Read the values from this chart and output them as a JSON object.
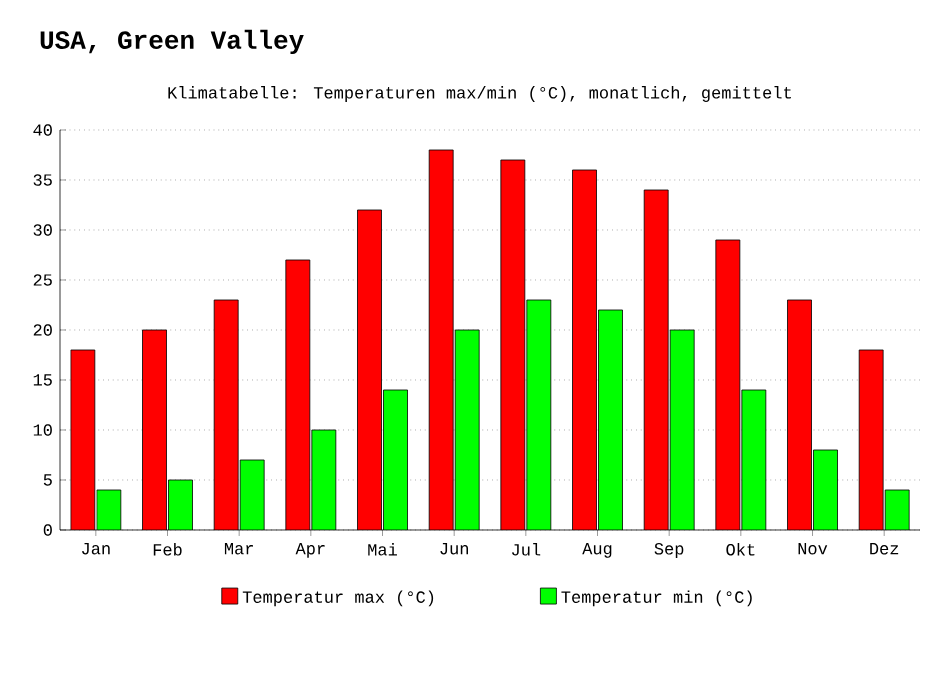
{
  "chart_data": {
    "type": "bar",
    "title": "USA, Green Valley",
    "subtitle": "Klimatabelle: Temperaturen max/min (°C), monatlich, gemittelt",
    "categories": [
      "Jan",
      "Feb",
      "Mar",
      "Apr",
      "Mai",
      "Jun",
      "Jul",
      "Aug",
      "Sep",
      "Okt",
      "Nov",
      "Dez"
    ],
    "series": [
      {
        "name": "Temperatur max (°C)",
        "color": "#ff0000",
        "values": [
          18,
          20,
          23,
          27,
          32,
          38,
          37,
          36,
          34,
          29,
          23,
          18
        ]
      },
      {
        "name": "Temperatur min (°C)",
        "color": "#00ff00",
        "values": [
          4,
          5,
          7,
          10,
          14,
          20,
          23,
          22,
          20,
          14,
          8,
          4
        ]
      }
    ],
    "ylim": [
      0,
      40
    ],
    "yticks": [
      0,
      5,
      10,
      15,
      20,
      25,
      30,
      35,
      40
    ],
    "grid": "y",
    "legend": "bottom"
  }
}
